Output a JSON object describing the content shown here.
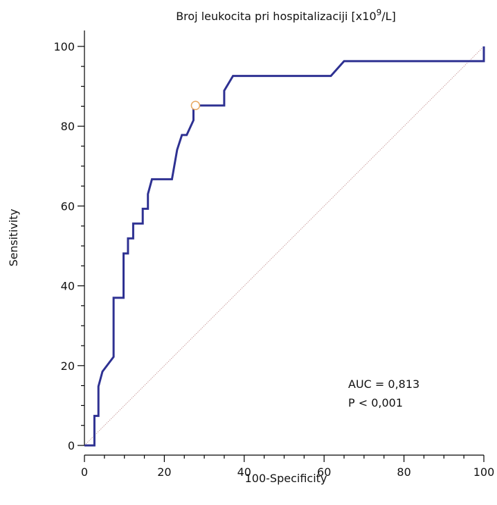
{
  "chart_data": {
    "type": "line",
    "title": "Broj leukocita pri hospitalizaciji [x10",
    "title_sup": "9",
    "title_end": "/L]",
    "xlabel": "100-Specificity",
    "ylabel": "Sensitivity",
    "xlim": [
      0,
      100
    ],
    "ylim": [
      0,
      100
    ],
    "xticks": [
      0,
      20,
      40,
      60,
      80,
      100
    ],
    "yticks": [
      0,
      20,
      40,
      60,
      80,
      100
    ],
    "xtick_labels": [
      "0",
      "20",
      "40",
      "60",
      "80",
      "100"
    ],
    "ytick_labels": [
      "0",
      "20",
      "40",
      "60",
      "80",
      "100"
    ],
    "grid": false,
    "series": [
      {
        "color": "#2e3192",
        "x": [
          0,
          2.5,
          2.5,
          3.5,
          3.5,
          4.5,
          7.3,
          7.3,
          9.8,
          9.8,
          10.9,
          10.9,
          12.2,
          12.2,
          14.6,
          14.6,
          15.9,
          15.9,
          16.9,
          21.9,
          23.2,
          24.4,
          25.6,
          27.3,
          27.3,
          35,
          35,
          37.2,
          61.7,
          65,
          100,
          100
        ],
        "y": [
          0,
          0,
          7.4,
          7.4,
          14.8,
          18.5,
          22.2,
          37,
          37,
          48.1,
          48.1,
          51.9,
          51.9,
          55.6,
          55.6,
          59.3,
          59.3,
          63,
          66.7,
          66.7,
          74.1,
          77.8,
          77.8,
          81.5,
          85.2,
          85.2,
          88.9,
          92.6,
          92.6,
          96.3,
          96.3,
          100
        ]
      }
    ],
    "reference_line": {
      "color": "#c08a8a",
      "x": [
        0,
        100
      ],
      "y": [
        0,
        100
      ]
    },
    "optimal_point": {
      "x": 27.8,
      "y": 85.2,
      "color": "#e8a860"
    },
    "annotations": [
      "AUC = 0,813",
      "P < 0,001"
    ]
  }
}
